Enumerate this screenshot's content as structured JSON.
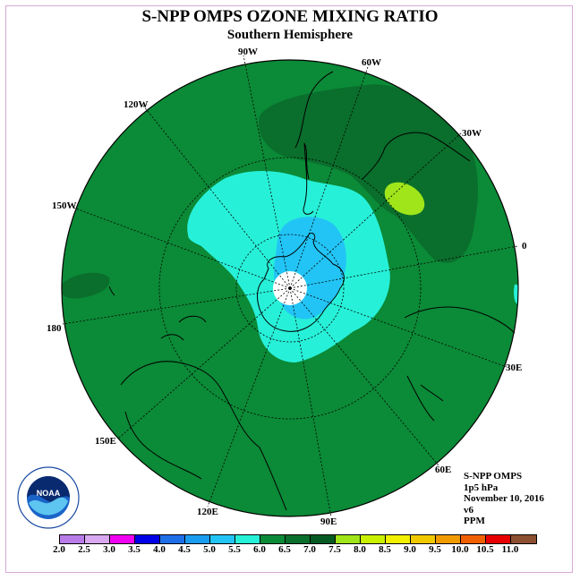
{
  "title": "S-NPP OMPS OZONE MIXING RATIO",
  "subtitle": "Southern Hemisphere",
  "lon_labels": {
    "w90": "90W",
    "w60": "60W",
    "w30": "30W",
    "w120": "120W",
    "w150": "150W",
    "e0": "0",
    "w180": "180",
    "e30": "30E",
    "e60": "60E",
    "e90": "90E",
    "e120": "120E",
    "e150": "150E"
  },
  "info": {
    "instrument": "S-NPP OMPS",
    "level": "1p5 hPa",
    "date": "November 10, 2016",
    "version": "v6",
    "units": "PPM"
  },
  "logo_text": "NOAA",
  "colorbar": {
    "colors": [
      "#b87be8",
      "#d8a9f0",
      "#f000f0",
      "#0000e8",
      "#1e6ee8",
      "#1a9cf0",
      "#22c4f5",
      "#27f0d8",
      "#0b8a37",
      "#0a6e2c",
      "#045a22",
      "#9fe51a",
      "#c8f000",
      "#f0f000",
      "#f0c800",
      "#f09a00",
      "#f06000",
      "#e80000",
      "#8a5030"
    ],
    "ticks": [
      "2.0",
      "2.5",
      "3.0",
      "3.5",
      "4.0",
      "4.5",
      "5.0",
      "5.5",
      "6.0",
      "6.5",
      "7.0",
      "7.5",
      "8.0",
      "8.5",
      "9.0",
      "9.5",
      "10.0",
      "10.5",
      "11.0"
    ]
  }
}
